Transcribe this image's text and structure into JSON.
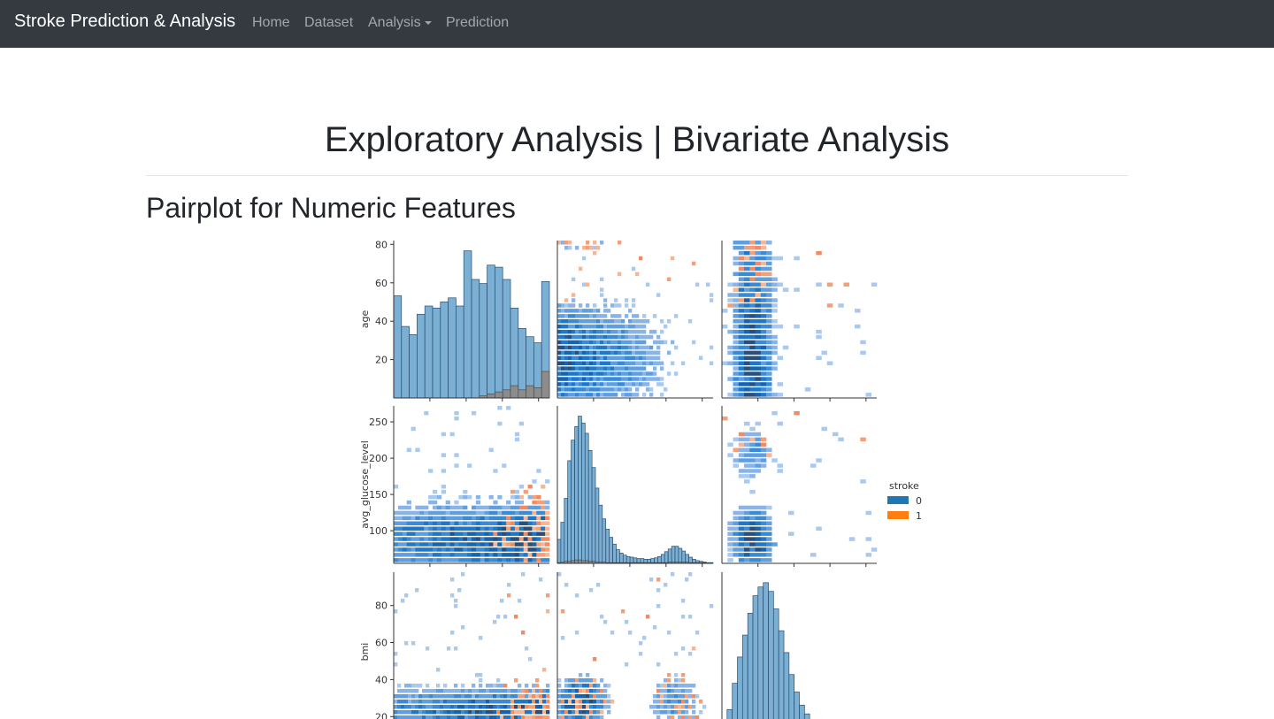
{
  "navbar": {
    "brand": "Stroke Prediction & Analysis",
    "items": [
      {
        "label": "Home"
      },
      {
        "label": "Dataset"
      },
      {
        "label": "Analysis",
        "dropdown": true
      },
      {
        "label": "Prediction"
      }
    ]
  },
  "page": {
    "title": "Exploratory Analysis | Bivariate Analysis",
    "section_title": "Pairplot for Numeric Features"
  },
  "chart_data": {
    "type": "pairplot",
    "variables": [
      "age",
      "avg_glucose_level",
      "bmi"
    ],
    "hue": "stroke",
    "legend": {
      "title": "stroke",
      "entries": [
        {
          "label": "0",
          "color": "#1f77b4"
        },
        {
          "label": "1",
          "color": "#ff7f0e"
        }
      ],
      "placement": "right"
    },
    "axes": {
      "age": {
        "ticks": [
          20,
          40,
          60,
          80
        ],
        "range": [
          0,
          82
        ]
      },
      "avg_glucose_level": {
        "ticks": [
          100,
          150,
          200,
          250
        ],
        "range": [
          55,
          272
        ]
      },
      "bmi": {
        "ticks": [
          20,
          40,
          60,
          80
        ],
        "range": [
          12,
          98
        ]
      }
    },
    "diagonal": {
      "age": {
        "bins": 20,
        "stroke_0_counts": [
          50,
          35,
          31,
          41,
          45,
          44,
          47,
          49,
          45,
          72,
          58,
          56,
          65,
          64,
          58,
          44,
          34,
          30,
          27,
          57
        ],
        "stroke_1_counts": [
          0,
          0,
          0,
          0,
          0,
          0,
          0,
          0,
          0,
          0,
          0,
          1,
          2,
          3,
          4,
          6,
          4,
          6,
          5,
          13
        ]
      },
      "avg_glucose_level": {
        "bins": 45,
        "stroke_0_counts": [
          35,
          60,
          95,
          150,
          180,
          200,
          215,
          205,
          190,
          165,
          140,
          110,
          85,
          65,
          50,
          38,
          28,
          20,
          15,
          12,
          10,
          9,
          8,
          7,
          7,
          6,
          6,
          7,
          8,
          10,
          13,
          17,
          21,
          25,
          25,
          22,
          18,
          13,
          9,
          6,
          4,
          3,
          2,
          1,
          1
        ],
        "stroke_1_counts": [
          1,
          2,
          3,
          3,
          4,
          5,
          5,
          4,
          4,
          3,
          3,
          2,
          2,
          2,
          1,
          1,
          1,
          1,
          1,
          1,
          1,
          1,
          1,
          1,
          1,
          1,
          1,
          1,
          1,
          1,
          1,
          1,
          2,
          2,
          2,
          2,
          2,
          2,
          1,
          1,
          1,
          1,
          1,
          0,
          0
        ]
      },
      "bmi": {
        "bins": 30,
        "stroke_0_counts": [
          5,
          25,
          55,
          85,
          110,
          135,
          155,
          165,
          170,
          160,
          140,
          115,
          90,
          65,
          45,
          30,
          20,
          12,
          7,
          4,
          3,
          2,
          1,
          1,
          1,
          0,
          0,
          0,
          0,
          0
        ],
        "stroke_1_counts": [
          0,
          0,
          1,
          2,
          3,
          4,
          5,
          6,
          6,
          5,
          4,
          3,
          2,
          2,
          1,
          1,
          0,
          0,
          0,
          0,
          0,
          0,
          0,
          0,
          0,
          0,
          0,
          0,
          0,
          0
        ]
      }
    },
    "off_diagonal": "2D histograms of each variable pair, colored by stroke class"
  }
}
